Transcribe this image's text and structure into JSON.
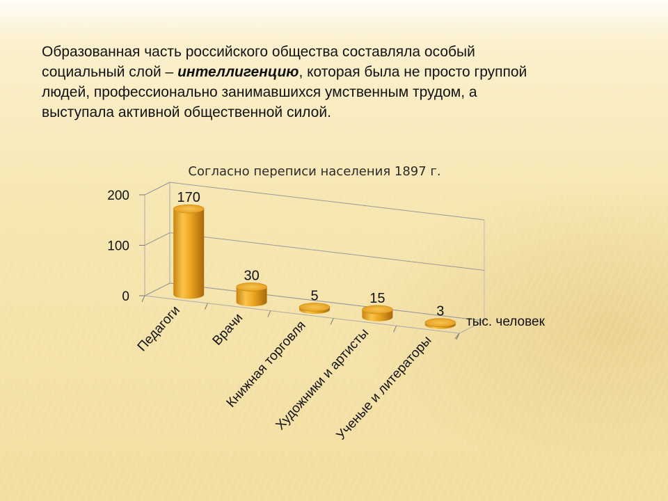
{
  "text": {
    "line1": "Образованная часть российского общества составляла особый",
    "line2_before": "социальный слой – ",
    "line2_term": "интеллигенцию",
    "line2_after": ", которая была не просто группой",
    "line3": "людей, профессионально занимавшихся умственным трудом, а",
    "line4": "выступала активной общественной силой."
  },
  "chart_data": {
    "type": "bar",
    "style": "3d-cylinder",
    "title": "Согласно переписи населения 1897 г.",
    "categories": [
      "Педагоги",
      "Врачи",
      "Книжная торговля",
      "Художники и артисты",
      "Ученые и литераторы"
    ],
    "values": [
      170,
      30,
      5,
      15,
      3
    ],
    "data_labels": [
      "170",
      "30",
      "5",
      "15",
      "3"
    ],
    "series_label": "тыс. человек",
    "yticks": [
      "0",
      "100",
      "200"
    ],
    "ylim": [
      0,
      200
    ],
    "grid": true,
    "colors": {
      "bar": "#e8a51e",
      "bar_dark": "#b06d08",
      "bar_light": "#f8cc60",
      "grid": "#999999"
    }
  }
}
